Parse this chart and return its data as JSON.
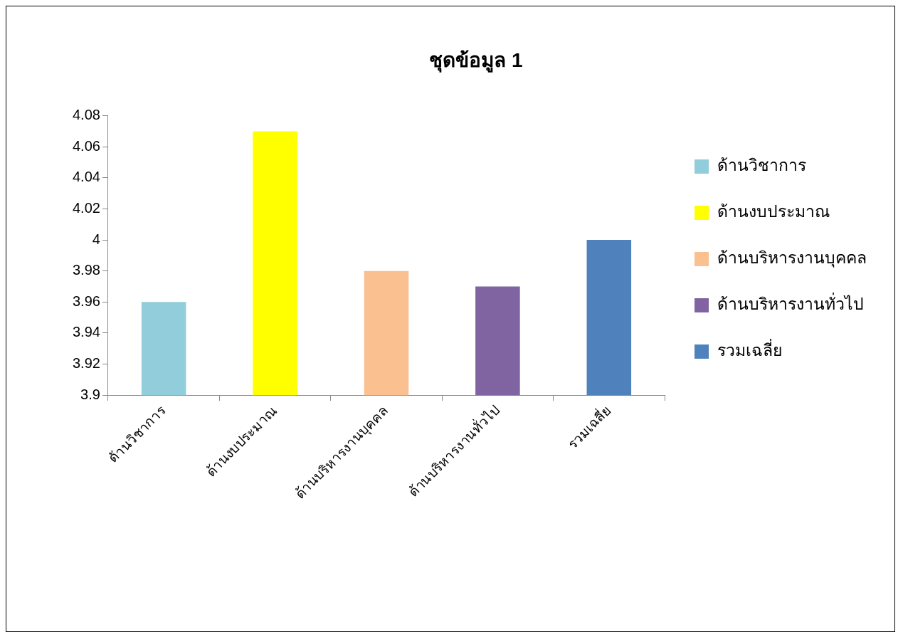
{
  "chart_data": {
    "type": "bar",
    "title": "ชุดข้อมูล 1",
    "categories": [
      "ด้านวิชาการ",
      "ด้านงบประมาณ",
      "ด้านบริหารงานบุคคล",
      "ด้านบริหารงานทั่วไป",
      "รวมเฉลี่ย"
    ],
    "series": [
      {
        "name": "ด้านวิชาการ",
        "color": "#92cddc",
        "values": [
          3.96,
          null,
          null,
          null,
          null
        ]
      },
      {
        "name": "ด้านงบประมาณ",
        "color": "#ffff00",
        "values": [
          null,
          4.07,
          null,
          null,
          null
        ]
      },
      {
        "name": "ด้านบริหารงานบุคคล",
        "color": "#fac090",
        "values": [
          null,
          null,
          3.98,
          null,
          null
        ]
      },
      {
        "name": "ด้านบริหารงานทั่วไป",
        "color": "#8064a2",
        "values": [
          null,
          null,
          null,
          3.97,
          null
        ]
      },
      {
        "name": "รวมเฉลี่ย",
        "color": "#4f81bd",
        "values": [
          null,
          null,
          null,
          null,
          4.0
        ]
      }
    ],
    "ylim": [
      3.9,
      4.08
    ],
    "yticks": [
      3.9,
      3.92,
      3.94,
      3.96,
      3.98,
      4,
      4.02,
      4.04,
      4.06,
      4.08
    ],
    "grid": false,
    "legend": "right"
  }
}
